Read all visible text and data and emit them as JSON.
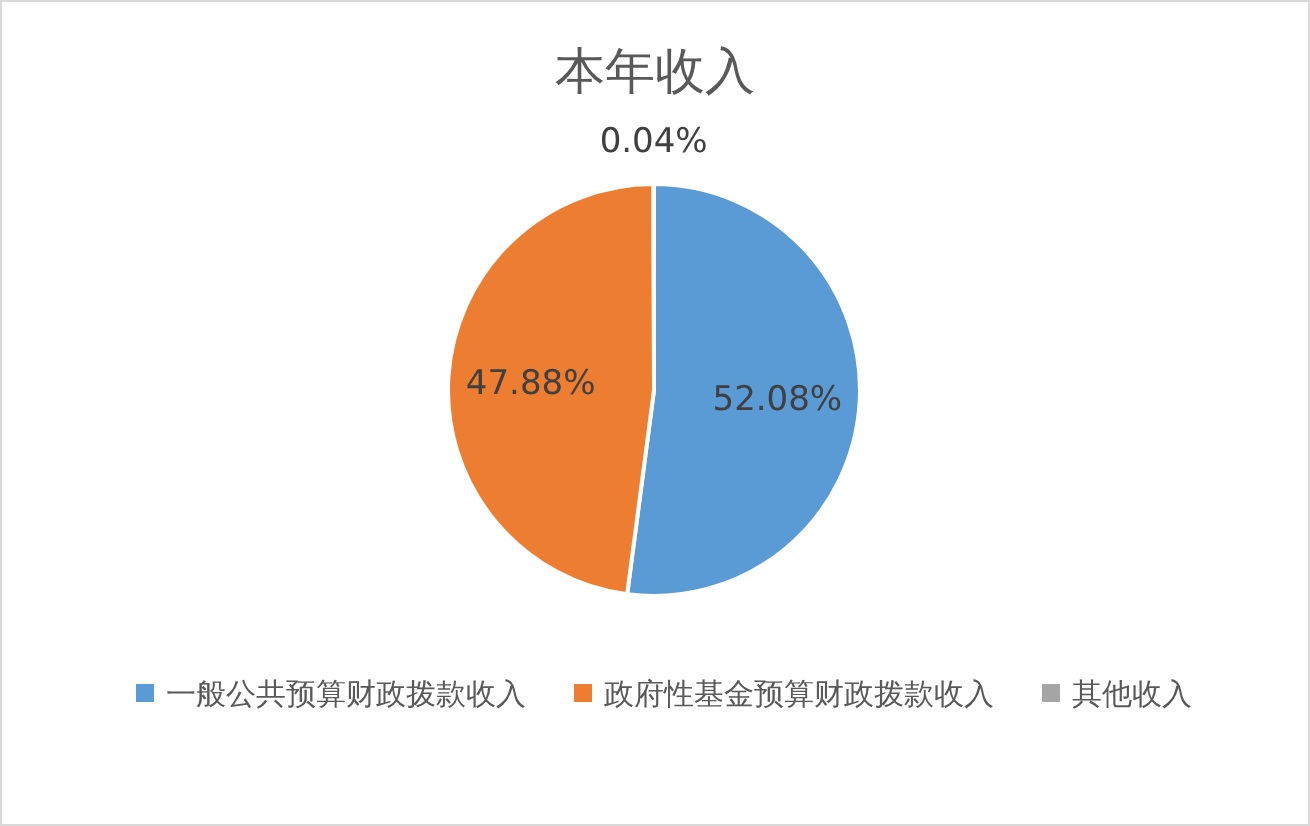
{
  "chart_data": {
    "type": "pie",
    "title": "本年收入",
    "categories": [
      "一般公共预算财政拨款收入",
      "政府性基金预算财政拨款收入",
      "其他收入"
    ],
    "values": [
      52.08,
      47.88,
      0.04
    ],
    "colors": [
      "#5b9bd5",
      "#ed7d31",
      "#a5a5a5"
    ],
    "value_labels": [
      "52.08%",
      "47.88%",
      "0.04%"
    ],
    "legend": "bottom"
  }
}
